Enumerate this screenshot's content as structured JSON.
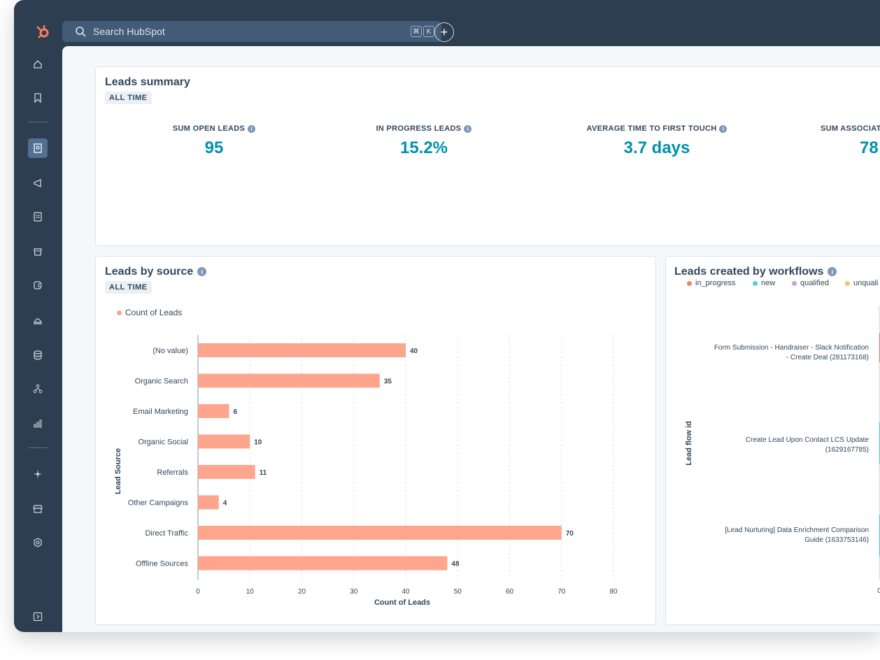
{
  "topbar": {
    "search_placeholder": "Search HubSpot",
    "shortcut_keys": [
      "⌘",
      "K"
    ],
    "add_label": "+"
  },
  "sidebar": {
    "items": [
      "home-icon",
      "bookmark-icon",
      "contacts-icon",
      "marketing-icon",
      "content-icon",
      "commerce-icon",
      "sales-icon",
      "service-icon",
      "data-icon",
      "automation-icon",
      "reporting-icon",
      "breeze-icon",
      "marketplace-icon",
      "settings-icon",
      "expand-icon"
    ]
  },
  "summary": {
    "title": "Leads summary",
    "tag": "ALL TIME",
    "kpis": [
      {
        "label": "SUM OPEN LEADS",
        "value": "95"
      },
      {
        "label": "IN PROGRESS LEADS",
        "value": "15.2%"
      },
      {
        "label": "AVERAGE TIME TO FIRST TOUCH",
        "value": "3.7 days"
      },
      {
        "label": "SUM ASSOCIAT",
        "value": "78"
      }
    ]
  },
  "source_card": {
    "title": "Leads by source",
    "tag": "ALL TIME",
    "legend": "Count of Leads"
  },
  "workflow_card": {
    "title": "Leads created by workflows",
    "legend": [
      "in_progress",
      "new",
      "qualified",
      "unquali"
    ],
    "ylabel": "Lead flow id",
    "rows": [
      {
        "line1": "Form Submission - Handraiser - Slack Notification",
        "line2": "- Create Deal (281173168)"
      },
      {
        "line1": "Create Lead Upon Contact LCS Update",
        "line2": "(1629167785)"
      },
      {
        "line1": "[Lead Nurturing] Data Enrichment Comparison",
        "line2": "Guide (1633753146)"
      }
    ],
    "x_tick": "0"
  },
  "colors": {
    "bar": "#fea58e",
    "in_progress": "#f2836b",
    "new": "#51d3d9",
    "qualified": "#b9a6e6",
    "unqualified": "#f5c26b"
  },
  "chart_data": {
    "type": "bar",
    "orientation": "horizontal",
    "categories": [
      "(No value)",
      "Organic Search",
      "Email Marketing",
      "Organic Social",
      "Referrals",
      "Other Campaigns",
      "Direct Traffic",
      "Offline Sources"
    ],
    "values": [
      40,
      35,
      6,
      10,
      11,
      4,
      70,
      48
    ],
    "series": [
      {
        "name": "Count of Leads",
        "values": [
          40,
          35,
          6,
          10,
          11,
          4,
          70,
          48
        ]
      }
    ],
    "xlabel": "Count of Leads",
    "ylabel": "Lead Source",
    "xlim": [
      0,
      80
    ],
    "xticks": [
      0,
      10,
      20,
      30,
      40,
      50,
      60,
      70,
      80
    ]
  }
}
